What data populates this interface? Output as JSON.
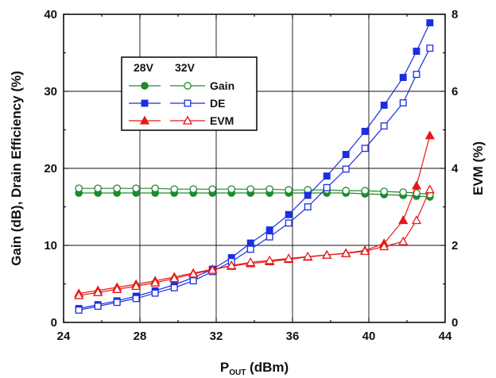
{
  "chart_data": {
    "type": "line",
    "x_axis": {
      "label_main": "P",
      "label_sub": "OUT",
      "label_unit": " (dBm)",
      "range": [
        24,
        44
      ],
      "ticks": [
        24,
        28,
        32,
        36,
        40,
        44
      ]
    },
    "y_left": {
      "label": "Gain (dB), Drain Efficiency (%)",
      "range": [
        0,
        40
      ],
      "ticks": [
        0,
        10,
        20,
        30,
        40
      ]
    },
    "y_right": {
      "label": "EVM (%)",
      "range": [
        0,
        8
      ],
      "ticks": [
        0,
        2,
        4,
        6,
        8
      ]
    },
    "grid": true,
    "legend": {
      "placement": "upper-left",
      "col_28": "28V",
      "col_32": "32V",
      "rows": [
        "Gain",
        "DE",
        "EVM"
      ]
    },
    "colors": {
      "gain": "#1f8a2e",
      "de": "#1a2fe0",
      "evm": "#e81818"
    },
    "x": [
      24.8,
      25.8,
      26.8,
      27.8,
      28.8,
      29.8,
      30.8,
      31.8,
      32.8,
      33.8,
      34.8,
      35.8,
      36.8,
      37.8,
      38.8,
      39.8,
      40.8,
      41.8,
      42.5,
      43.2
    ],
    "series": [
      {
        "name": "Gain",
        "voltage": "28V",
        "axis": "left",
        "filled": true,
        "marker": "circle",
        "values": [
          16.8,
          16.8,
          16.8,
          16.8,
          16.8,
          16.8,
          16.8,
          16.8,
          16.8,
          16.8,
          16.8,
          16.8,
          16.8,
          16.8,
          16.8,
          16.7,
          16.6,
          16.5,
          16.4,
          16.3
        ]
      },
      {
        "name": "Gain",
        "voltage": "32V",
        "axis": "left",
        "filled": false,
        "marker": "circle",
        "values": [
          17.4,
          17.4,
          17.4,
          17.4,
          17.4,
          17.3,
          17.3,
          17.3,
          17.3,
          17.3,
          17.3,
          17.2,
          17.2,
          17.2,
          17.1,
          17.1,
          17.0,
          16.9,
          16.8,
          16.6
        ]
      },
      {
        "name": "DE",
        "voltage": "28V",
        "axis": "left",
        "filled": true,
        "marker": "square",
        "values": [
          1.8,
          2.3,
          2.8,
          3.4,
          4.1,
          4.9,
          5.8,
          6.9,
          8.4,
          10.3,
          12.0,
          14.0,
          16.5,
          19.0,
          21.8,
          24.8,
          28.2,
          31.8,
          35.2,
          38.9
        ]
      },
      {
        "name": "DE",
        "voltage": "32V",
        "axis": "left",
        "filled": false,
        "marker": "square",
        "values": [
          1.6,
          2.1,
          2.6,
          3.1,
          3.8,
          4.5,
          5.4,
          6.6,
          7.9,
          9.5,
          11.1,
          12.9,
          15.0,
          17.5,
          19.9,
          22.6,
          25.5,
          28.5,
          32.2,
          35.6
        ]
      },
      {
        "name": "EVM",
        "voltage": "28V",
        "axis": "right",
        "filled": true,
        "marker": "triangle",
        "values": [
          0.75,
          0.83,
          0.91,
          0.99,
          1.08,
          1.18,
          1.28,
          1.38,
          1.46,
          1.53,
          1.58,
          1.64,
          1.7,
          1.75,
          1.8,
          1.87,
          2.05,
          2.65,
          3.55,
          4.85
        ]
      },
      {
        "name": "EVM",
        "voltage": "32V",
        "axis": "right",
        "filled": false,
        "marker": "triangle",
        "values": [
          0.7,
          0.78,
          0.86,
          0.94,
          1.03,
          1.14,
          1.26,
          1.36,
          1.48,
          1.56,
          1.61,
          1.66,
          1.71,
          1.75,
          1.79,
          1.85,
          1.97,
          2.1,
          2.65,
          3.45
        ]
      }
    ]
  }
}
